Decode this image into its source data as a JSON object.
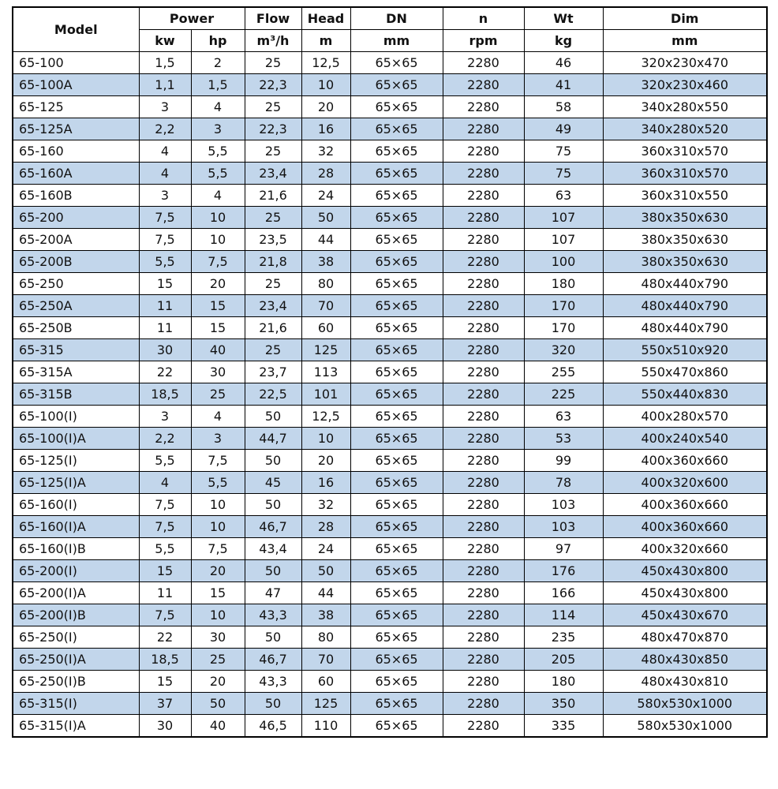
{
  "colors": {
    "stripe": "#c2d6eb",
    "border": "#000000",
    "background": "#ffffff",
    "text": "#111111"
  },
  "chart_data": {
    "type": "table",
    "header": {
      "model": "Model",
      "power": "Power",
      "flow": "Flow",
      "head": "Head",
      "dn": "DN",
      "n": "n",
      "wt": "Wt",
      "dim": "Dim"
    },
    "units": [
      "kw",
      "hp",
      "m³/h",
      "m",
      "mm",
      "rpm",
      "kg",
      "mm"
    ],
    "columns": [
      "Model",
      "Power kw",
      "Power hp",
      "Flow m³/h",
      "Head m",
      "DN mm",
      "n rpm",
      "Wt kg",
      "Dim mm"
    ],
    "rows": [
      [
        "65-100",
        "1,5",
        "2",
        "25",
        "12,5",
        "65×65",
        "2280",
        "46",
        "320x230x470"
      ],
      [
        "65-100A",
        "1,1",
        "1,5",
        "22,3",
        "10",
        "65×65",
        "2280",
        "41",
        "320x230x460"
      ],
      [
        "65-125",
        "3",
        "4",
        "25",
        "20",
        "65×65",
        "2280",
        "58",
        "340x280x550"
      ],
      [
        "65-125A",
        "2,2",
        "3",
        "22,3",
        "16",
        "65×65",
        "2280",
        "49",
        "340x280x520"
      ],
      [
        "65-160",
        "4",
        "5,5",
        "25",
        "32",
        "65×65",
        "2280",
        "75",
        "360x310x570"
      ],
      [
        "65-160A",
        "4",
        "5,5",
        "23,4",
        "28",
        "65×65",
        "2280",
        "75",
        "360x310x570"
      ],
      [
        "65-160B",
        "3",
        "4",
        "21,6",
        "24",
        "65×65",
        "2280",
        "63",
        "360x310x550"
      ],
      [
        "65-200",
        "7,5",
        "10",
        "25",
        "50",
        "65×65",
        "2280",
        "107",
        "380x350x630"
      ],
      [
        "65-200A",
        "7,5",
        "10",
        "23,5",
        "44",
        "65×65",
        "2280",
        "107",
        "380x350x630"
      ],
      [
        "65-200B",
        "5,5",
        "7,5",
        "21,8",
        "38",
        "65×65",
        "2280",
        "100",
        "380x350x630"
      ],
      [
        "65-250",
        "15",
        "20",
        "25",
        "80",
        "65×65",
        "2280",
        "180",
        "480x440x790"
      ],
      [
        "65-250A",
        "11",
        "15",
        "23,4",
        "70",
        "65×65",
        "2280",
        "170",
        "480x440x790"
      ],
      [
        "65-250B",
        "11",
        "15",
        "21,6",
        "60",
        "65×65",
        "2280",
        "170",
        "480x440x790"
      ],
      [
        "65-315",
        "30",
        "40",
        "25",
        "125",
        "65×65",
        "2280",
        "320",
        "550x510x920"
      ],
      [
        "65-315A",
        "22",
        "30",
        "23,7",
        "113",
        "65×65",
        "2280",
        "255",
        "550x470x860"
      ],
      [
        "65-315B",
        "18,5",
        "25",
        "22,5",
        "101",
        "65×65",
        "2280",
        "225",
        "550x440x830"
      ],
      [
        "65-100(I)",
        "3",
        "4",
        "50",
        "12,5",
        "65×65",
        "2280",
        "63",
        "400x280x570"
      ],
      [
        "65-100(I)A",
        "2,2",
        "3",
        "44,7",
        "10",
        "65×65",
        "2280",
        "53",
        "400x240x540"
      ],
      [
        "65-125(I)",
        "5,5",
        "7,5",
        "50",
        "20",
        "65×65",
        "2280",
        "99",
        "400x360x660"
      ],
      [
        "65-125(I)A",
        "4",
        "5,5",
        "45",
        "16",
        "65×65",
        "2280",
        "78",
        "400x320x600"
      ],
      [
        "65-160(I)",
        "7,5",
        "10",
        "50",
        "32",
        "65×65",
        "2280",
        "103",
        "400x360x660"
      ],
      [
        "65-160(I)A",
        "7,5",
        "10",
        "46,7",
        "28",
        "65×65",
        "2280",
        "103",
        "400x360x660"
      ],
      [
        "65-160(I)B",
        "5,5",
        "7,5",
        "43,4",
        "24",
        "65×65",
        "2280",
        "97",
        "400x320x660"
      ],
      [
        "65-200(I)",
        "15",
        "20",
        "50",
        "50",
        "65×65",
        "2280",
        "176",
        "450x430x800"
      ],
      [
        "65-200(I)A",
        "11",
        "15",
        "47",
        "44",
        "65×65",
        "2280",
        "166",
        "450x430x800"
      ],
      [
        "65-200(I)B",
        "7,5",
        "10",
        "43,3",
        "38",
        "65×65",
        "2280",
        "114",
        "450x430x670"
      ],
      [
        "65-250(I)",
        "22",
        "30",
        "50",
        "80",
        "65×65",
        "2280",
        "235",
        "480x470x870"
      ],
      [
        "65-250(I)A",
        "18,5",
        "25",
        "46,7",
        "70",
        "65×65",
        "2280",
        "205",
        "480x430x850"
      ],
      [
        "65-250(I)B",
        "15",
        "20",
        "43,3",
        "60",
        "65×65",
        "2280",
        "180",
        "480x430x810"
      ],
      [
        "65-315(I)",
        "37",
        "50",
        "50",
        "125",
        "65×65",
        "2280",
        "350",
        "580x530x1000"
      ],
      [
        "65-315(I)A",
        "30",
        "40",
        "46,5",
        "110",
        "65×65",
        "2280",
        "335",
        "580x530x1000"
      ]
    ]
  }
}
